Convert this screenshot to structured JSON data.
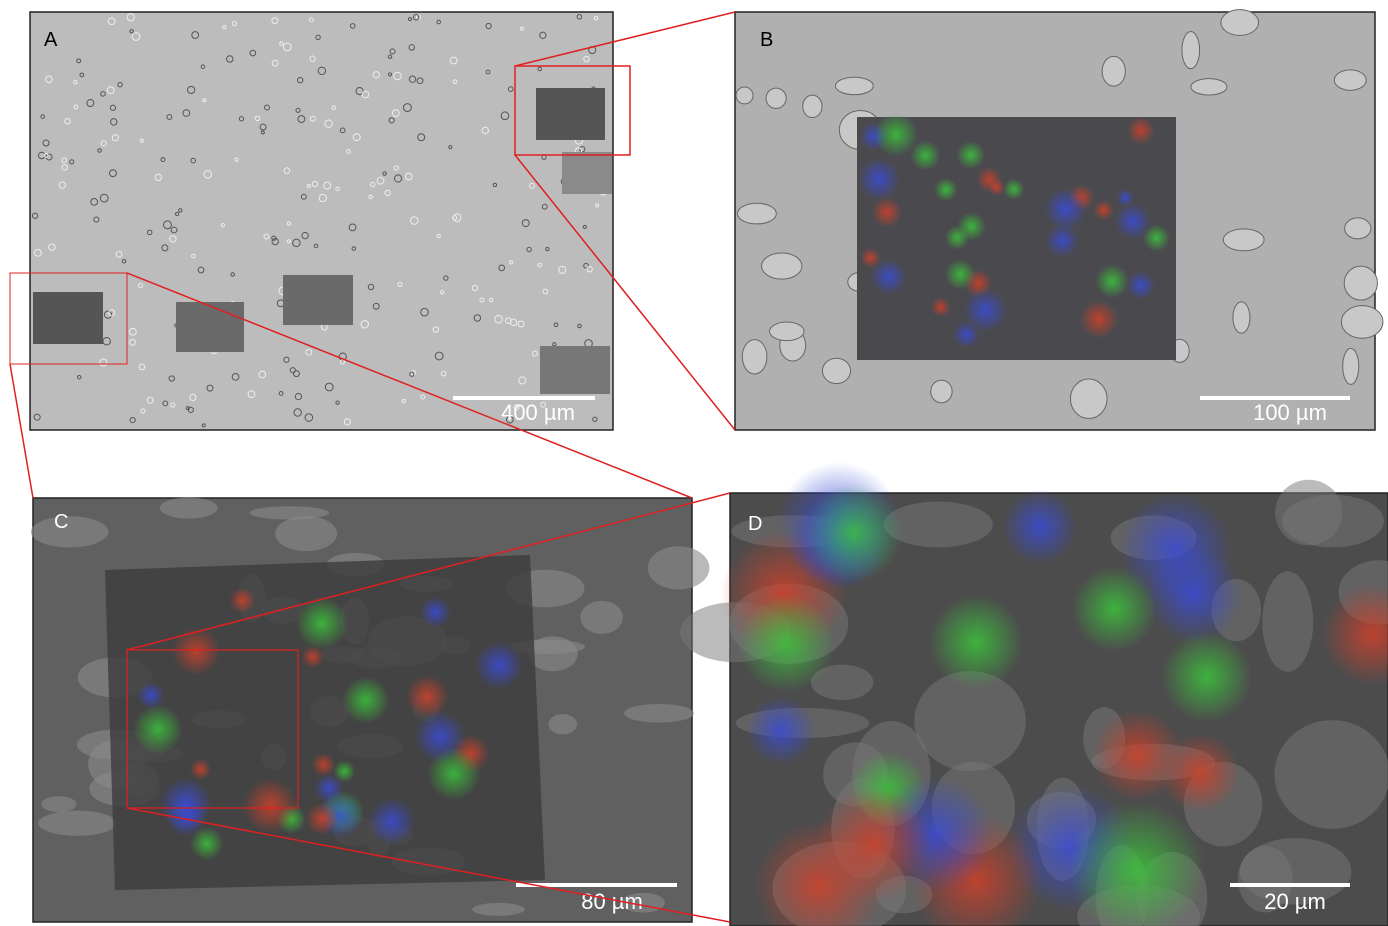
{
  "panels": [
    {
      "label": "A",
      "scale_bar": "400 µm"
    },
    {
      "label": "B",
      "scale_bar": "100 µm"
    },
    {
      "label": "C",
      "scale_bar": "80 µm"
    },
    {
      "label": "D",
      "scale_bar": "20 µm"
    }
  ]
}
